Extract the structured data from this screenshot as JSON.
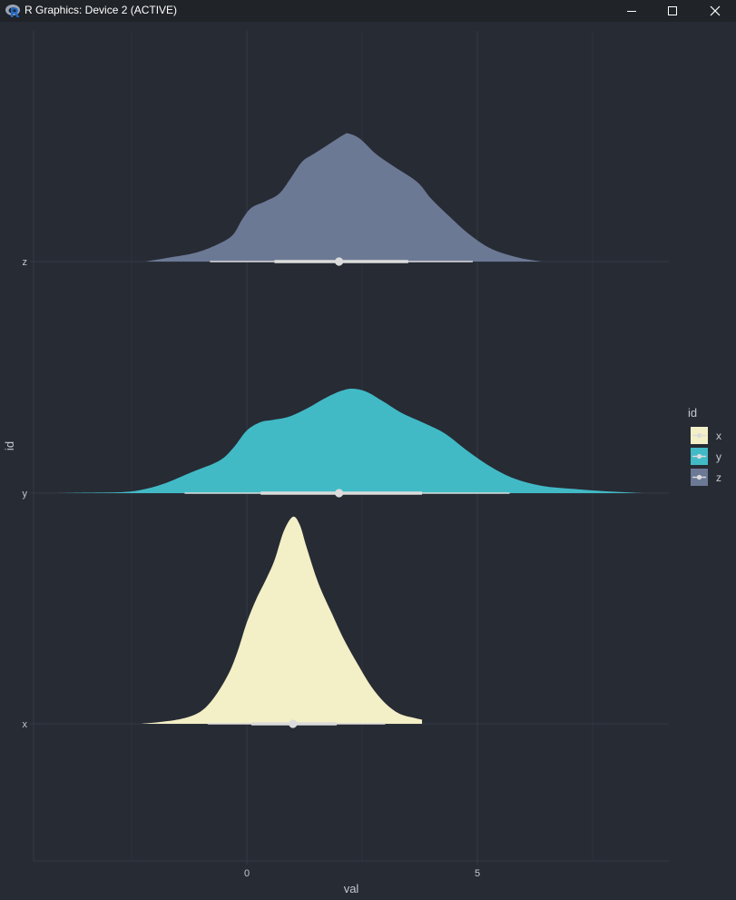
{
  "window": {
    "title": "R Graphics: Device 2 (ACTIVE)",
    "icon": "r-logo-icon",
    "controls": [
      "minimize-icon",
      "maximize-icon",
      "close-icon"
    ]
  },
  "theme": {
    "background": "#272b34",
    "panel": "#272b34",
    "grid": "#333945",
    "text": "#c4c8d0",
    "interval": "#dcdcdc"
  },
  "chart_data": {
    "type": "area",
    "subtype": "halfeye (density ridges with point-interval)",
    "xlabel": "val",
    "ylabel": "id",
    "xlim": [
      -4.6,
      9.2
    ],
    "x_ticks": [
      0,
      5
    ],
    "x_tick_labels": [
      "0",
      "5"
    ],
    "grid": true,
    "legend": {
      "title": "id",
      "position": "right"
    },
    "series": [
      {
        "name": "x",
        "color": "#f3efc6",
        "median": 1.0,
        "interval_66": [
          0.1,
          1.95
        ],
        "interval_95": [
          -0.85,
          3.0
        ],
        "density": [
          [
            -2.3,
            0.0
          ],
          [
            -1.9,
            0.008
          ],
          [
            -1.4,
            0.025
          ],
          [
            -1.0,
            0.06
          ],
          [
            -0.7,
            0.13
          ],
          [
            -0.4,
            0.24
          ],
          [
            -0.2,
            0.35
          ],
          [
            0.0,
            0.49
          ],
          [
            0.2,
            0.6
          ],
          [
            0.4,
            0.69
          ],
          [
            0.6,
            0.79
          ],
          [
            0.8,
            0.93
          ],
          [
            1.0,
            1.0
          ],
          [
            1.15,
            0.96
          ],
          [
            1.3,
            0.85
          ],
          [
            1.55,
            0.68
          ],
          [
            1.85,
            0.53
          ],
          [
            2.1,
            0.41
          ],
          [
            2.4,
            0.29
          ],
          [
            2.7,
            0.18
          ],
          [
            3.0,
            0.1
          ],
          [
            3.3,
            0.05
          ],
          [
            3.6,
            0.03
          ],
          [
            3.8,
            0.02
          ]
        ]
      },
      {
        "name": "y",
        "color": "#41bac6",
        "median": 2.0,
        "interval_66": [
          0.3,
          3.8
        ],
        "interval_95": [
          -1.35,
          5.7
        ],
        "density": [
          [
            -4.1,
            0.0
          ],
          [
            -3.5,
            0.004
          ],
          [
            -2.7,
            0.01
          ],
          [
            -2.3,
            0.03
          ],
          [
            -1.8,
            0.09
          ],
          [
            -1.2,
            0.2
          ],
          [
            -0.6,
            0.31
          ],
          [
            -0.3,
            0.43
          ],
          [
            0.0,
            0.6
          ],
          [
            0.3,
            0.68
          ],
          [
            0.55,
            0.7
          ],
          [
            0.9,
            0.73
          ],
          [
            1.3,
            0.81
          ],
          [
            1.7,
            0.91
          ],
          [
            2.05,
            0.98
          ],
          [
            2.3,
            1.0
          ],
          [
            2.6,
            0.97
          ],
          [
            2.95,
            0.88
          ],
          [
            3.35,
            0.77
          ],
          [
            3.85,
            0.67
          ],
          [
            4.3,
            0.57
          ],
          [
            4.8,
            0.4
          ],
          [
            5.3,
            0.25
          ],
          [
            5.8,
            0.14
          ],
          [
            6.4,
            0.07
          ],
          [
            7.1,
            0.04
          ],
          [
            7.9,
            0.015
          ],
          [
            8.6,
            0.0
          ]
        ]
      },
      {
        "name": "z",
        "color": "#6c7995",
        "median": 2.0,
        "interval_66": [
          0.6,
          3.5
        ],
        "interval_95": [
          -0.8,
          4.9
        ],
        "density": [
          [
            -2.2,
            0.0
          ],
          [
            -1.7,
            0.03
          ],
          [
            -1.1,
            0.07
          ],
          [
            -0.6,
            0.14
          ],
          [
            -0.3,
            0.21
          ],
          [
            -0.1,
            0.33
          ],
          [
            0.1,
            0.42
          ],
          [
            0.4,
            0.47
          ],
          [
            0.7,
            0.53
          ],
          [
            0.95,
            0.65
          ],
          [
            1.2,
            0.78
          ],
          [
            1.45,
            0.84
          ],
          [
            1.75,
            0.91
          ],
          [
            2.1,
            0.99
          ],
          [
            2.2,
            1.0
          ],
          [
            2.45,
            0.96
          ],
          [
            2.8,
            0.84
          ],
          [
            3.2,
            0.74
          ],
          [
            3.7,
            0.62
          ],
          [
            4.0,
            0.49
          ],
          [
            4.4,
            0.35
          ],
          [
            4.8,
            0.22
          ],
          [
            5.3,
            0.1
          ],
          [
            5.9,
            0.03
          ],
          [
            6.4,
            0.0
          ]
        ]
      }
    ]
  }
}
